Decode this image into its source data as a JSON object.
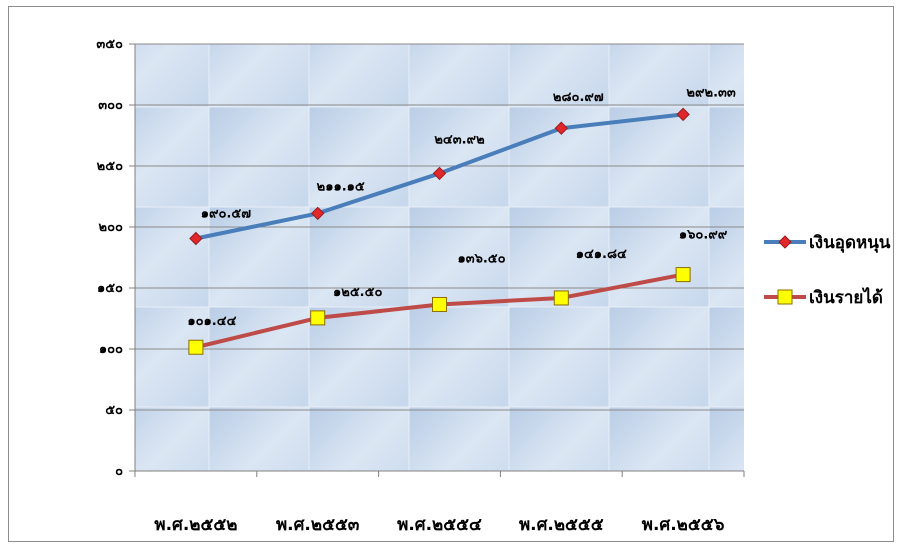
{
  "chart_data": {
    "type": "line",
    "categories": [
      "พ.ศ.๒๕๕๒",
      "พ.ศ.๒๕๕๓",
      "พ.ศ.๒๕๕๔",
      "พ.ศ.๒๕๕๕",
      "พ.ศ.๒๕๕๖"
    ],
    "series": [
      {
        "name": "เงินอุดหนุน",
        "values": [
          190.57,
          211.15,
          243.92,
          280.97,
          292.33
        ],
        "labels": [
          "๑๙๐.๕๗",
          "๒๑๑.๑๕",
          "๒๔๓.๙๒",
          "๒๘๐.๙๗",
          "๒๙๒.๓๓"
        ],
        "color": "#4a7ebb",
        "marker_color": "#e0272a",
        "marker": "diamond"
      },
      {
        "name": "เงินรายได้",
        "values": [
          101.44,
          125.5,
          136.5,
          141.84,
          160.99
        ],
        "labels": [
          "๑๐๑.๔๔",
          "๑๒๕.๕๐",
          "๑๓๖.๕๐",
          "๑๔๑.๘๔",
          "๑๖๐.๙๙"
        ],
        "color": "#be4b48",
        "marker_color": "#ffff00",
        "marker": "square"
      }
    ],
    "ylim": [
      0,
      350
    ],
    "yticks": [
      0,
      50,
      100,
      150,
      200,
      250,
      300,
      350
    ],
    "ytick_labels": [
      "๐",
      "๕๐",
      "๑๐๐",
      "๑๕๐",
      "๒๐๐",
      "๒๕๐",
      "๓๐๐",
      "๓๕๐"
    ],
    "grid": true,
    "legend": "right",
    "title": "",
    "xlabel": "",
    "ylabel": ""
  }
}
